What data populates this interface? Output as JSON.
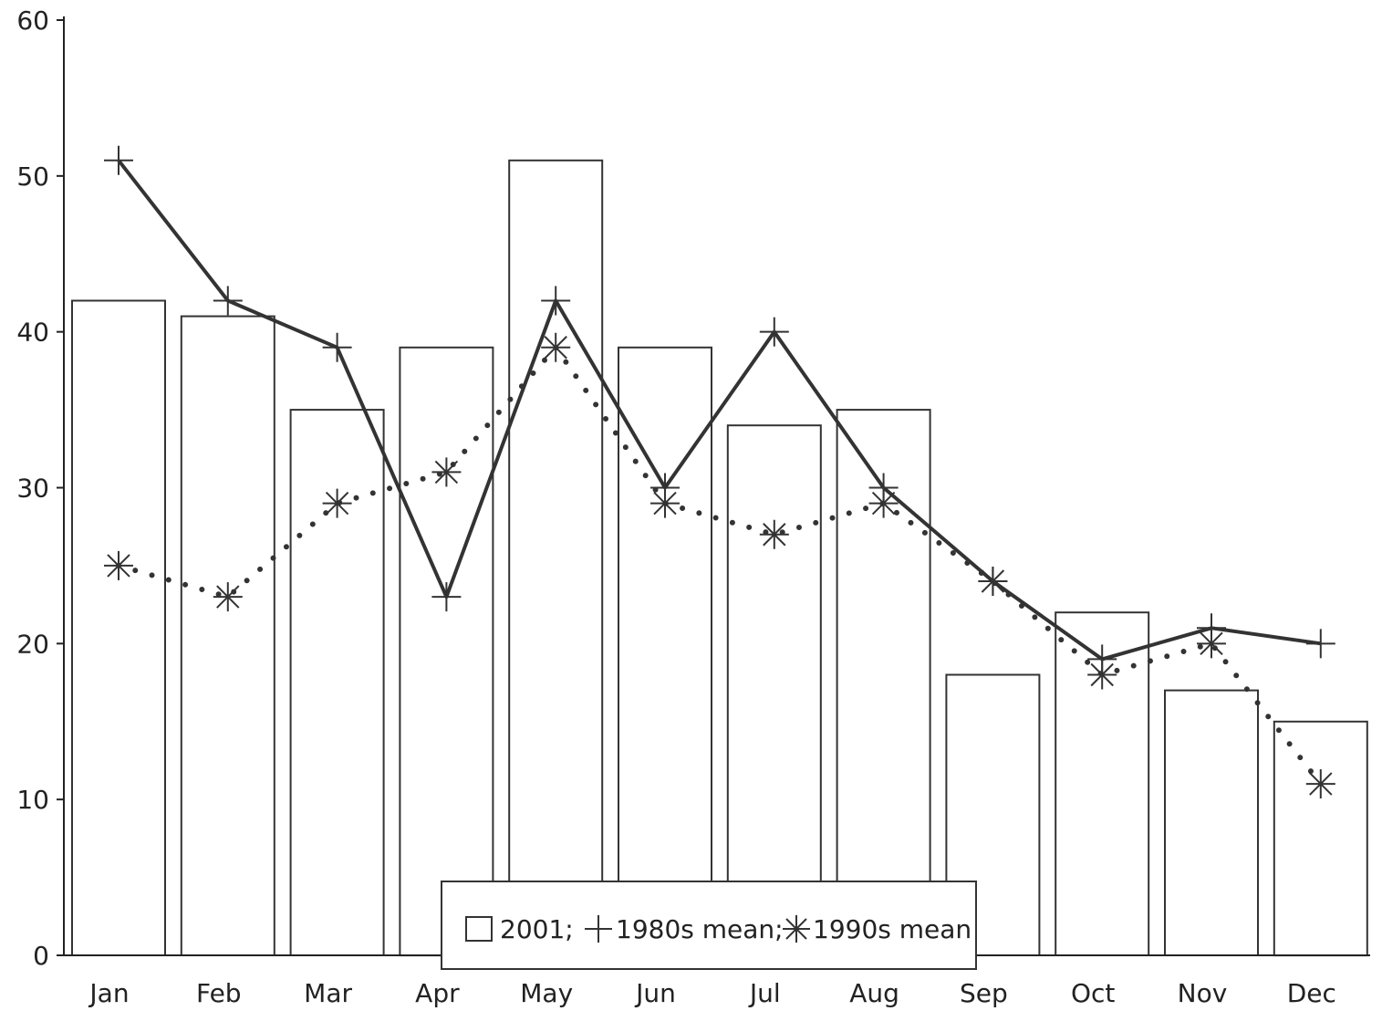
{
  "chart_data": {
    "type": "bar",
    "title": "",
    "xlabel": "",
    "ylabel": "",
    "categories": [
      "Jan",
      "Feb",
      "Mar",
      "Apr",
      "May",
      "Jun",
      "Jul",
      "Aug",
      "Sep",
      "Oct",
      "Nov",
      "Dec"
    ],
    "ylim": [
      0,
      60
    ],
    "yticks": [
      "0",
      "10",
      "20",
      "30",
      "40",
      "50",
      "60"
    ],
    "grid": false,
    "legend_position": "bottom-center",
    "legend": {
      "bar_label": "2001;",
      "line1_label": "1980s mean;",
      "line2_label": "1990s mean"
    },
    "series": [
      {
        "name": "2001",
        "kind": "bar",
        "values": [
          42,
          41,
          35,
          39,
          51,
          39,
          34,
          35,
          18,
          22,
          17,
          15
        ]
      },
      {
        "name": "1980s mean",
        "kind": "line",
        "style": "solid",
        "marker": "plus",
        "values": [
          51,
          42,
          39,
          23,
          42,
          30,
          40,
          30,
          24,
          19,
          21,
          20
        ]
      },
      {
        "name": "1990s mean",
        "kind": "line",
        "style": "dotted",
        "marker": "asterisk",
        "values": [
          25,
          23,
          29,
          31,
          39,
          29,
          27,
          29,
          24,
          18,
          20,
          11
        ]
      }
    ],
    "colors": {
      "axis": "#222222",
      "bar_stroke": "#333333",
      "bar_fill": "#ffffff",
      "line": "#333333"
    }
  }
}
